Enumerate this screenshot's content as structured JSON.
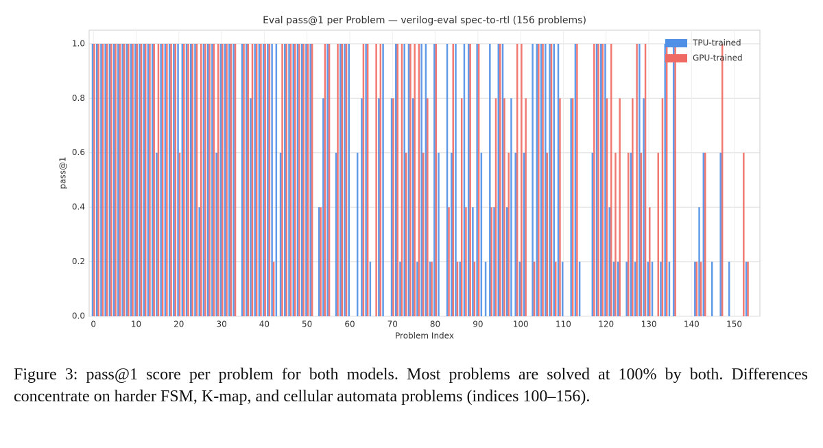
{
  "chart_data": {
    "type": "bar",
    "title": "Eval pass@1 per Problem — verilog-eval spec-to-rtl (156 problems)",
    "x_label": "Problem Index",
    "y_label": "pass@1",
    "x": [
      0,
      1,
      2,
      3,
      4,
      5,
      6,
      7,
      8,
      9,
      10,
      11,
      12,
      13,
      14,
      15,
      16,
      17,
      18,
      19,
      20,
      21,
      22,
      23,
      24,
      25,
      26,
      27,
      28,
      29,
      30,
      31,
      32,
      33,
      34,
      35,
      36,
      37,
      38,
      39,
      40,
      41,
      42,
      43,
      44,
      45,
      46,
      47,
      48,
      49,
      50,
      51,
      52,
      53,
      54,
      55,
      56,
      57,
      58,
      59,
      60,
      61,
      62,
      63,
      64,
      65,
      66,
      67,
      68,
      69,
      70,
      71,
      72,
      73,
      74,
      75,
      76,
      77,
      78,
      79,
      80,
      81,
      82,
      83,
      84,
      85,
      86,
      87,
      88,
      89,
      90,
      91,
      92,
      93,
      94,
      95,
      96,
      97,
      98,
      99,
      100,
      101,
      102,
      103,
      104,
      105,
      106,
      107,
      108,
      109,
      110,
      111,
      112,
      113,
      114,
      115,
      116,
      117,
      118,
      119,
      120,
      121,
      122,
      123,
      124,
      125,
      126,
      127,
      128,
      129,
      130,
      131,
      132,
      133,
      134,
      135,
      136,
      137,
      138,
      139,
      140,
      141,
      142,
      143,
      144,
      145,
      146,
      147,
      148,
      149,
      150,
      151,
      152,
      153,
      154,
      155
    ],
    "series": [
      {
        "name": "TPU-trained",
        "color": "#4f8fe6",
        "values": [
          1,
          1,
          1,
          1,
          1,
          1,
          1,
          1,
          1,
          1,
          1,
          1,
          1,
          1,
          1,
          0.6,
          1,
          1,
          1,
          1,
          1,
          1,
          1,
          1,
          1,
          0.4,
          1,
          1,
          1,
          0.6,
          1,
          1,
          1,
          1,
          0,
          1,
          1,
          0.8,
          1,
          1,
          1,
          1,
          1,
          1,
          0.6,
          1,
          1,
          1,
          1,
          1,
          1,
          1,
          0,
          0.4,
          0.8,
          1,
          0,
          0.6,
          1,
          1,
          1,
          0,
          0.6,
          0.8,
          1,
          0.2,
          0,
          0.8,
          1,
          0,
          0.8,
          1,
          0.2,
          1,
          1,
          0.8,
          0.2,
          1,
          1,
          0.2,
          1,
          0.6,
          0,
          1,
          0.6,
          1,
          0.2,
          1,
          1,
          0.4,
          1,
          0.6,
          0.2,
          1,
          0.4,
          1,
          1,
          0.4,
          0.8,
          0.6,
          0.2,
          0.6,
          0,
          1,
          1,
          1,
          1,
          1,
          1,
          1,
          0.2,
          0,
          0.8,
          1,
          0.2,
          0,
          0,
          0.6,
          1,
          1,
          1,
          0.4,
          0.2,
          0.2,
          0,
          0.2,
          0.6,
          0.2,
          1,
          0.8,
          0.2,
          0.2,
          0,
          0.2,
          1,
          0.2,
          1,
          0,
          0,
          0,
          0,
          0.2,
          0.4,
          0.6,
          0,
          0.2,
          0,
          0.6,
          0,
          0.2,
          0,
          0,
          0,
          0.2,
          0,
          0
        ]
      },
      {
        "name": "GPU-trained",
        "color": "#ef6a62",
        "values": [
          1,
          1,
          1,
          1,
          1,
          1,
          1,
          1,
          1,
          1,
          1,
          1,
          1,
          1,
          1,
          1,
          1,
          1,
          1,
          1,
          0.6,
          1,
          1,
          1,
          1,
          1,
          1,
          1,
          1,
          1,
          1,
          1,
          1,
          1,
          0,
          1,
          1,
          1,
          1,
          1,
          1,
          1,
          0.2,
          0,
          1,
          1,
          1,
          1,
          1,
          1,
          1,
          1,
          0,
          0.4,
          1,
          1,
          0,
          1,
          1,
          1,
          0,
          0,
          0,
          1,
          1,
          0,
          1,
          1,
          0,
          0,
          0.8,
          1,
          1,
          0.6,
          1,
          1,
          1,
          0.6,
          0.8,
          0.2,
          1,
          0,
          0,
          0.4,
          1,
          0.2,
          0.8,
          0.4,
          1,
          0.2,
          1,
          0,
          0,
          0.4,
          0.8,
          1,
          0.8,
          0.6,
          0,
          1,
          1,
          0.8,
          0,
          0.2,
          1,
          1,
          0.6,
          1,
          0.2,
          0.8,
          0,
          0,
          0.8,
          1,
          0,
          0,
          0,
          1,
          1,
          1,
          0.8,
          1,
          0.6,
          0.8,
          0,
          0.6,
          0.8,
          1,
          0.6,
          1,
          0.4,
          0,
          0.6,
          0.8,
          1,
          0,
          1,
          0,
          0,
          0,
          0,
          0.2,
          0.2,
          0.6,
          0,
          0,
          0,
          1,
          0,
          0,
          0,
          0,
          0.6,
          0.2,
          0,
          0
        ]
      }
    ],
    "xlim": [
      -1,
      156
    ],
    "xticks": [
      0,
      10,
      20,
      30,
      40,
      50,
      60,
      70,
      80,
      90,
      100,
      110,
      120,
      130,
      140,
      150
    ],
    "ylim": [
      0,
      1.05
    ],
    "yticks": [
      {
        "value": 0,
        "label": "0.0"
      },
      0.2,
      0.4,
      0.6,
      0.8,
      {
        "value": 1,
        "label": "1.0"
      }
    ],
    "grid": true,
    "legend": "upper right"
  },
  "caption": "Figure 3: pass@1 score per problem for both models. Most problems are solved at 100% by both. Differences concentrate on harder FSM, K-map, and cellular automata problems (indices 100–156)."
}
